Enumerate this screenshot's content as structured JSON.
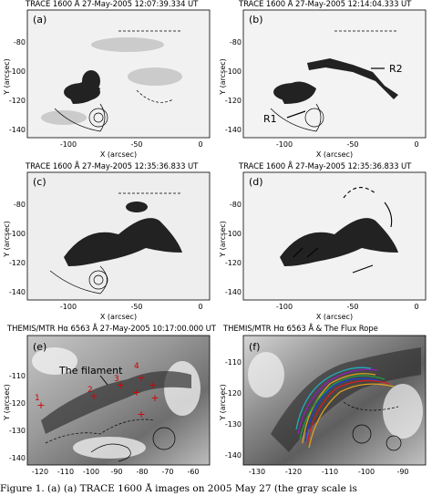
{
  "panels": [
    {
      "id": "a",
      "title": "TRACE 1600 Å 27-May-2005 12:07:39.334 UT"
    },
    {
      "id": "b",
      "title": "TRACE 1600 Å 27-May-2005 12:14:04.333 UT",
      "labels": [
        "R1",
        "R2"
      ]
    },
    {
      "id": "c",
      "title": "TRACE 1600 Å 27-May-2005 12:35:36.833 UT"
    },
    {
      "id": "d",
      "title": "TRACE 1600 Å 27-May-2005 12:35:36.833 UT"
    },
    {
      "id": "e",
      "title": "THEMIS/MTR Hα 6563 Å 27-May-2005 10:17:00.000 UT",
      "annotation": "The filament",
      "numbers": [
        "1",
        "2",
        "3",
        "4"
      ]
    },
    {
      "id": "f",
      "title": "THEMIS/MTR Hα 6563 Å & The Flux Rope"
    }
  ],
  "axes": {
    "ylabel": "Y (arcsec)",
    "xlabel": "X (arcsec)",
    "trace_y_ticks": [
      "-80",
      "-100",
      "-120",
      "-140"
    ],
    "trace_x_ticks": [
      "-100",
      "-50",
      "0"
    ],
    "e_y_ticks": [
      "-110",
      "-120",
      "-130",
      "-140"
    ],
    "e_x_ticks": [
      "-120",
      "-110",
      "-100",
      "-90",
      "-80",
      "-70",
      "-60"
    ],
    "f_y_ticks": [
      "-110",
      "-120",
      "-130",
      "-140"
    ],
    "f_x_ticks": [
      "-130",
      "-120",
      "-110",
      "-100",
      "-90"
    ]
  },
  "caption": "Figure 1. (a) (a) TRACE 1600 Å images on 2005 May 27 (the gray scale is"
}
